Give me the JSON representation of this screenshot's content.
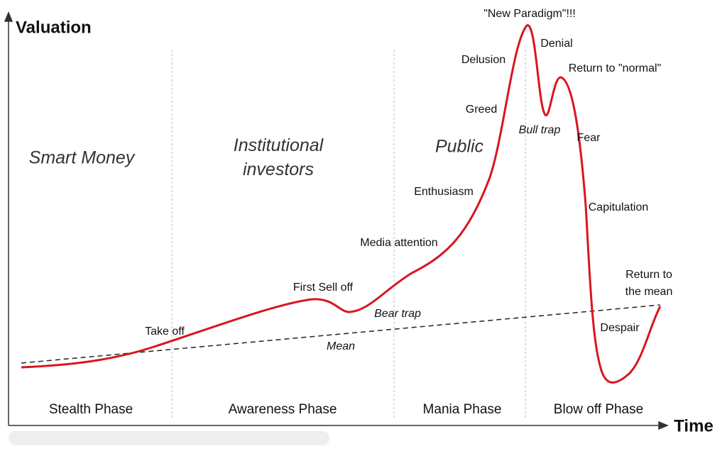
{
  "axes": {
    "y_label": "Valuation",
    "x_label": "Time"
  },
  "groups": [
    "Smart Money",
    "Institutional investors",
    "Public"
  ],
  "phases": [
    "Stealth Phase",
    "Awareness Phase",
    "Mania Phase",
    "Blow off Phase"
  ],
  "annotations": [
    "Take off",
    "First Sell off",
    "Bear trap",
    "Mean",
    "Media attention",
    "Enthusiasm",
    "Greed",
    "Delusion",
    "\"New Paradigm\"!!!",
    "Denial",
    "Bull trap",
    "Return to \"normal\"",
    "Fear",
    "Capitulation",
    "Despair",
    "Return to the mean"
  ]
}
